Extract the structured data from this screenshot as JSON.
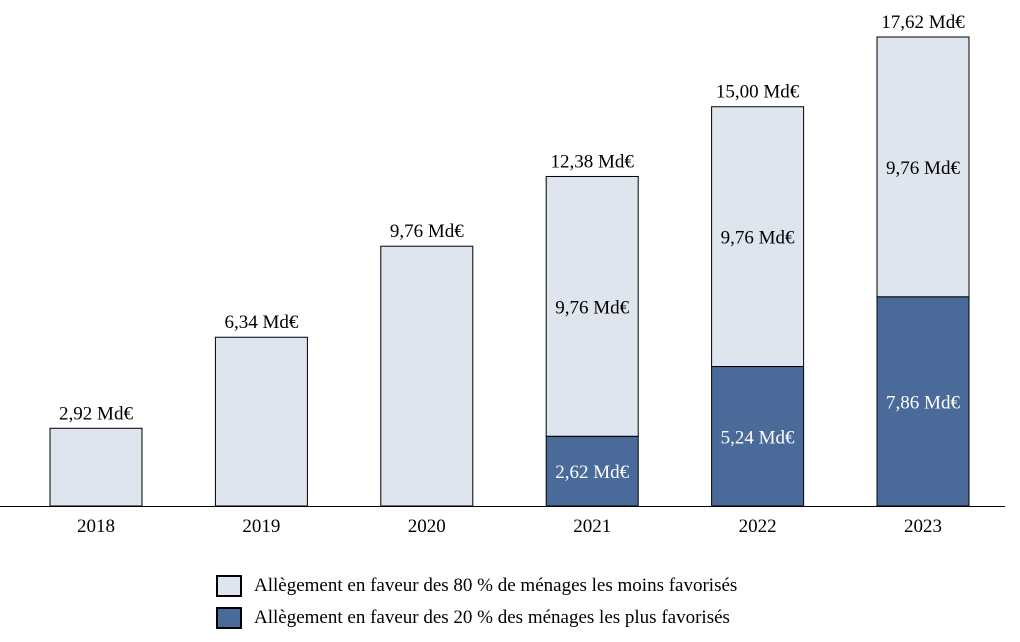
{
  "chart_data": {
    "type": "bar",
    "stacked": true,
    "categories": [
      "2018",
      "2019",
      "2020",
      "2021",
      "2022",
      "2023"
    ],
    "series": [
      {
        "name": "Allègement en faveur des 20 % des ménages les plus favorisés",
        "values": [
          0,
          0,
          0,
          2.62,
          5.24,
          7.86
        ],
        "color": "#4a6a9a",
        "labels": [
          "",
          "",
          "",
          "2,62 Md€",
          "5,24 Md€",
          "7,86 Md€"
        ]
      },
      {
        "name": "Allègement en faveur des 80 % de ménages les moins favorisés",
        "values": [
          2.92,
          6.34,
          9.76,
          9.76,
          9.76,
          9.76
        ],
        "color": "#dfe5ef",
        "labels": [
          "",
          "",
          "",
          "9,76 Md€",
          "9,76 Md€",
          "9,76 Md€"
        ]
      }
    ],
    "totals": [
      2.92,
      6.34,
      9.76,
      12.38,
      15.0,
      17.62
    ],
    "total_labels": [
      "2,92 Md€",
      "6,34 Md€",
      "9,76 Md€",
      "12,38 Md€",
      "15,00 Md€",
      "17,62 Md€"
    ],
    "ylim": [
      0,
      17.62
    ],
    "grid": false,
    "legend_position": "bottom"
  },
  "legend": [
    {
      "label": "Allègement en faveur des 80 % de ménages les moins favorisés",
      "color": "#dfe5ef"
    },
    {
      "label": "Allègement en faveur des 20 % des ménages les plus favorisés",
      "color": "#4a6a9a"
    }
  ]
}
